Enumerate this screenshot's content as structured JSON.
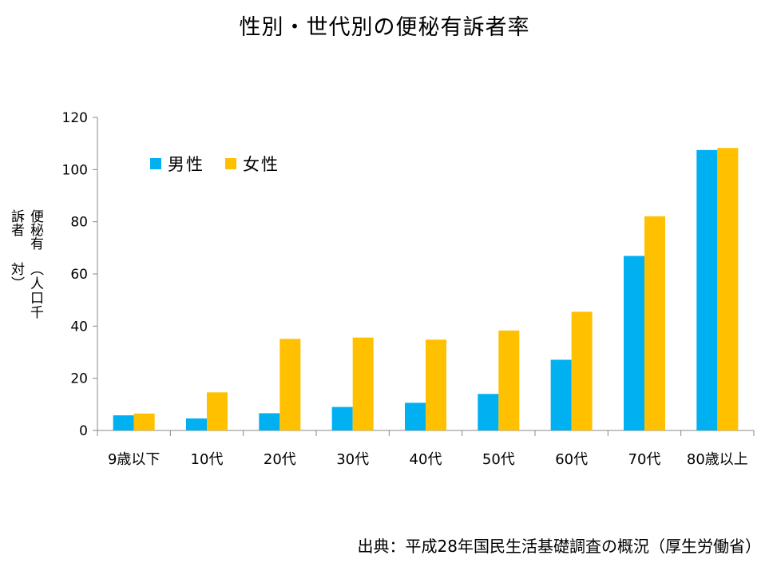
{
  "chart_data": {
    "type": "bar",
    "title": "性別・世代別の便秘有訴者率",
    "ylabel_line1": "便秘有訴者",
    "ylabel_line2": "（人口千対）",
    "xlabel": "",
    "ylim": [
      0,
      120
    ],
    "yticks": [
      0,
      20,
      40,
      60,
      80,
      100,
      120
    ],
    "grid": false,
    "legend_position": "top-left",
    "categories": [
      "9歳以下",
      "10代",
      "20代",
      "30代",
      "40代",
      "50代",
      "60代",
      "70代",
      "80歳以上"
    ],
    "series": [
      {
        "name": "男性",
        "color": "#00b0f0",
        "values": [
          5.8,
          4.6,
          6.6,
          9.0,
          10.6,
          14.0,
          27.1,
          66.9,
          107.5
        ]
      },
      {
        "name": "女性",
        "color": "#ffc000",
        "values": [
          6.5,
          14.6,
          35.1,
          35.6,
          34.8,
          38.3,
          45.5,
          82.1,
          108.3
        ]
      }
    ]
  },
  "source": "出典：平成28年国民生活基礎調査の概況（厚生労働省）"
}
